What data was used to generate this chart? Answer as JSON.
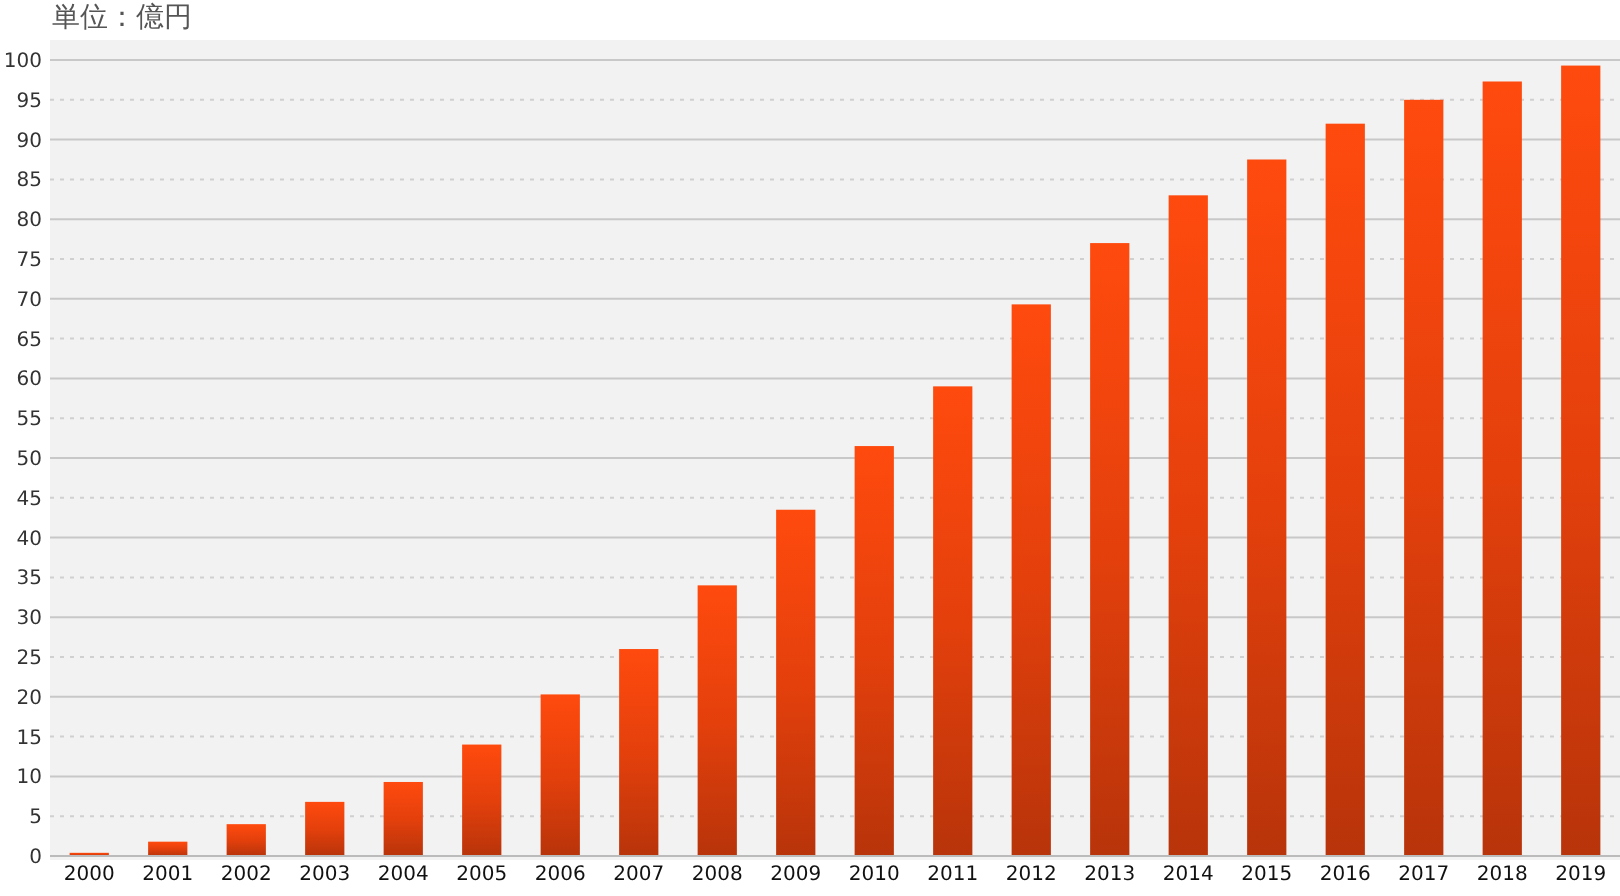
{
  "chart_data": {
    "type": "bar",
    "title": "単位：億円",
    "categories": [
      "2000",
      "2001",
      "2002",
      "2003",
      "2004",
      "2005",
      "2006",
      "2007",
      "2008",
      "2009",
      "2010",
      "2011",
      "2012",
      "2013",
      "2014",
      "2015",
      "2016",
      "2017",
      "2018",
      "2019"
    ],
    "values": [
      0.4,
      1.8,
      4,
      6.8,
      9.3,
      14,
      20.3,
      26,
      34,
      43.5,
      51.5,
      59,
      69.3,
      77,
      83,
      87.5,
      92,
      95,
      97.3,
      99.3
    ],
    "color": "#e4400c",
    "ylim": [
      0,
      100
    ],
    "yticks": [
      0,
      5,
      10,
      15,
      20,
      25,
      30,
      35,
      40,
      45,
      50,
      55,
      60,
      65,
      70,
      75,
      80,
      85,
      90,
      95,
      100
    ],
    "grid": "y"
  }
}
